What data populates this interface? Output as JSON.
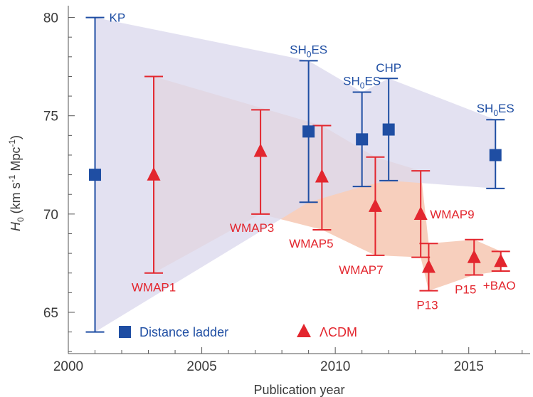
{
  "chart_data": {
    "type": "scatter",
    "title": "",
    "xlabel": "Publication year",
    "ylabel": "H0 (km s-1 Mpc-1)",
    "ylabel_parts": {
      "sym": "H",
      "sub": "0",
      "open": " (km s",
      "exp1": "-1",
      "mid": " Mpc",
      "exp2": "-1",
      "close": ")"
    },
    "xlim": [
      2000,
      2017.3
    ],
    "ylim": [
      62.9,
      80.6
    ],
    "x_ticks": [
      2000,
      2005,
      2010,
      2015
    ],
    "y_ticks": [
      65,
      70,
      75,
      80
    ],
    "grid": false,
    "legend_position": "bottom",
    "colors": {
      "distance_ladder": "#1f4ea3",
      "lcdm": "#e3262e",
      "ladder_band": "#dcdaee",
      "lcdm_band": "#f6c7b2",
      "axis": "#555555"
    },
    "series": [
      {
        "name": "Distance ladder",
        "marker": "square",
        "color": "#1f4ea3",
        "points": [
          {
            "label": "KP",
            "x": 2001.0,
            "y": 72.0,
            "ylow": 64.0,
            "yhigh": 80.0
          },
          {
            "label_parts": [
              "SH",
              "0",
              "ES"
            ],
            "x": 2009.0,
            "y": 74.2,
            "ylow": 70.6,
            "yhigh": 77.8
          },
          {
            "label_parts": [
              "SH",
              "0",
              "ES"
            ],
            "x": 2011.0,
            "y": 73.8,
            "ylow": 71.4,
            "yhigh": 76.2
          },
          {
            "label": "CHP",
            "x": 2012.0,
            "y": 74.3,
            "ylow": 71.7,
            "yhigh": 76.9
          },
          {
            "label_parts": [
              "SH",
              "0",
              "ES"
            ],
            "x": 2016.0,
            "y": 73.0,
            "ylow": 71.3,
            "yhigh": 74.8
          }
        ]
      },
      {
        "name": "ΛCDM",
        "marker": "triangle",
        "color": "#e3262e",
        "points": [
          {
            "label": "WMAP1",
            "x": 2003.2,
            "y": 72.0,
            "ylow": 67.0,
            "yhigh": 77.0
          },
          {
            "label": "WMAP3",
            "x": 2007.2,
            "y": 73.2,
            "ylow": 70.0,
            "yhigh": 75.3
          },
          {
            "label": "WMAP5",
            "x": 2009.5,
            "y": 71.9,
            "ylow": 69.2,
            "yhigh": 74.5
          },
          {
            "label": "WMAP7",
            "x": 2011.5,
            "y": 70.4,
            "ylow": 67.9,
            "yhigh": 72.9
          },
          {
            "label": "WMAP9",
            "x": 2013.2,
            "y": 70.0,
            "ylow": 67.8,
            "yhigh": 72.2
          },
          {
            "label": "P13",
            "x": 2013.5,
            "y": 67.3,
            "ylow": 66.1,
            "yhigh": 68.5
          },
          {
            "label": "P15",
            "x": 2015.2,
            "y": 67.8,
            "ylow": 66.9,
            "yhigh": 68.7
          },
          {
            "label": "+BAO",
            "x": 2016.2,
            "y": 67.6,
            "ylow": 67.1,
            "yhigh": 68.1
          }
        ]
      }
    ]
  }
}
